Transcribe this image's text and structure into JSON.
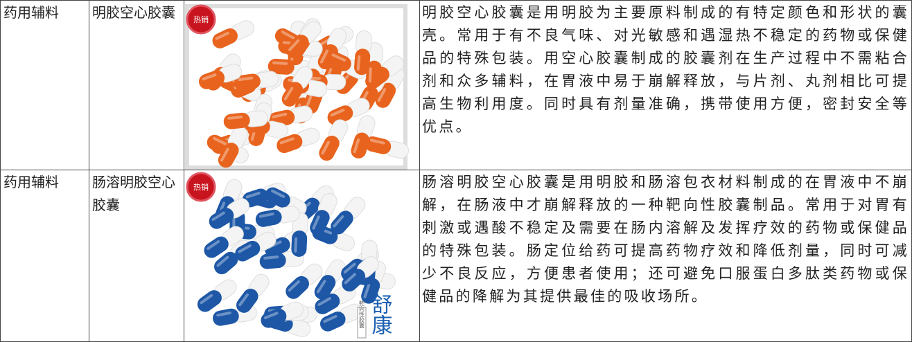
{
  "table": {
    "rows": [
      {
        "category": "药用辅料",
        "name": "明胶空心胶囊",
        "image": {
          "badge": "热销"
        },
        "description": "明胶空心胶囊是用明胶为主要原料制成的有特定颜色和形状的囊壳。常用于有不良气味、对光敏感和遇湿热不稳定的药物或保健品的特殊包装。用空心胶囊制成的胶囊剂在生产过程中不需粘合剂和众多辅料，在胃液中易于崩解释放，与片剂、丸剂相比可提高生物利用度。同时具有剂量准确，携带使用方便，密封安全等优点。"
      },
      {
        "category": "药用辅料",
        "name": "肠溶明胶空心胶囊",
        "image": {
          "badge": "热销",
          "tag": "靶向性胶囊",
          "brand": "舒康"
        },
        "description": "肠溶明胶空心胶囊是用明胶和肠溶包衣材料制成的在胃液中不崩解，在肠液中才崩解释放的一种靶向性胶囊制品。常用于对胃有刺激或遇酸不稳定及需要在肠内溶解及发挥疗效的药物或保健品的特殊包装。肠定位给药可提高药物疗效和降低剂量，同时可减少不良反应，方便患者使用；还可避免口服蛋白多肽类药物或保健品的降解为其提供最佳的吸收场所。"
      }
    ]
  }
}
